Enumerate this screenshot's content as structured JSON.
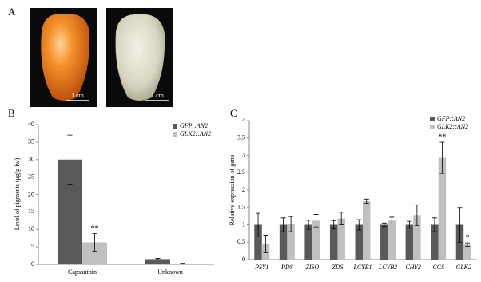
{
  "panel_labels": [
    "A",
    "B",
    "C"
  ],
  "scale_bars": [
    "1 cm",
    "1 cm"
  ],
  "chart_data": [
    {
      "type": "bar",
      "ylabel": "Level of pigments (μg/g fw)",
      "categories": [
        "Capsanthin",
        "Unknown"
      ],
      "series": [
        {
          "name": "GFP::AN2",
          "color": "#595959",
          "values": [
            30,
            1.5
          ],
          "errors": [
            7,
            0.2
          ]
        },
        {
          "name": "GLK2::AN2",
          "color": "#c0c0c0",
          "values": [
            6.3,
            0.2
          ],
          "errors": [
            2.5,
            0.1
          ],
          "significance": [
            "**",
            null
          ]
        }
      ],
      "ylim": [
        0,
        40
      ],
      "yticks": [
        0,
        5,
        10,
        15,
        20,
        25,
        30,
        35,
        40
      ]
    },
    {
      "type": "bar",
      "ylabel": "Relative expression of gene",
      "categories": [
        "PSY1",
        "PDS",
        "ZISO",
        "ZDS",
        "LCYB1",
        "LCYB2",
        "CHY2",
        "CCS",
        "GLK2"
      ],
      "series": [
        {
          "name": "GFP::AN2",
          "color": "#595959",
          "values": [
            1,
            1,
            1,
            1,
            1,
            1,
            1,
            1,
            1
          ],
          "errors": [
            0.33,
            0.2,
            0.13,
            0.12,
            0.15,
            0.05,
            0.1,
            0.2,
            0.5
          ]
        },
        {
          "name": "GLK2::AN2",
          "color": "#c0c0c0",
          "values": [
            0.45,
            1.02,
            1.12,
            1.18,
            1.68,
            1.12,
            1.28,
            2.93,
            0.43
          ],
          "errors": [
            0.25,
            0.22,
            0.18,
            0.18,
            0.06,
            0.1,
            0.3,
            0.45,
            0.05
          ],
          "significance": [
            null,
            null,
            null,
            null,
            null,
            null,
            null,
            "**",
            "*"
          ]
        }
      ],
      "ylim": [
        0,
        4
      ],
      "yticks": [
        0,
        0.5,
        1,
        1.5,
        2,
        2.5,
        3,
        3.5,
        4
      ]
    }
  ]
}
